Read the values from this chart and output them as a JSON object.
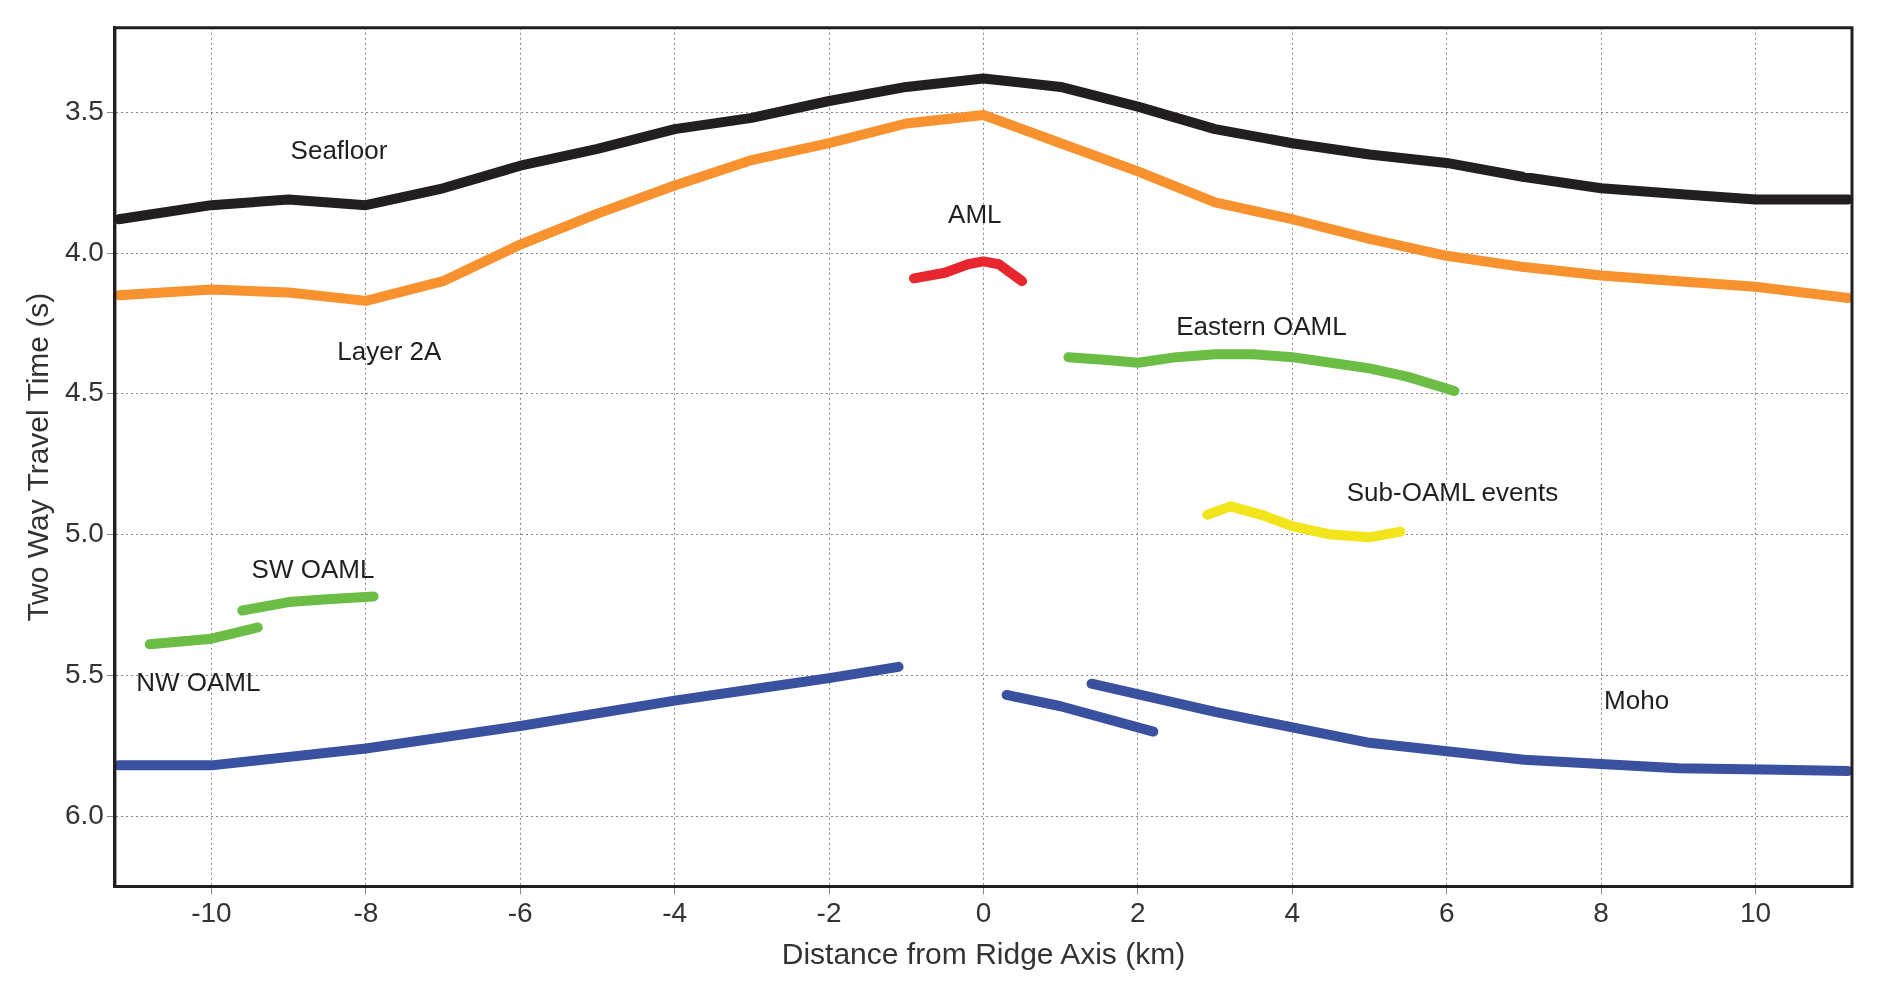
{
  "chart_data": {
    "type": "line",
    "xlabel": "Distance from Ridge Axis (km)",
    "ylabel": "Two Way Travel Time (s)",
    "xlim": [
      -11.25,
      11.25
    ],
    "ylim": [
      6.25,
      3.2
    ],
    "xticks": [
      -10,
      -8,
      -6,
      -4,
      -2,
      0,
      2,
      4,
      6,
      8,
      10
    ],
    "yticks": [
      3.5,
      {
        "value": 4,
        "label": "4.0"
      },
      4.5,
      {
        "value": 5,
        "label": "5.0"
      },
      5.5,
      {
        "value": 6,
        "label": "6.0"
      }
    ],
    "grid": true,
    "marker": "none",
    "series": [
      {
        "name": "Seafloor",
        "color": "#231f20",
        "x": [
          -11.2,
          -10,
          -9,
          -8,
          -7,
          -6,
          -5,
          -4,
          -3,
          -2,
          -1,
          0,
          1,
          2,
          3,
          4,
          5,
          6,
          7,
          8,
          9,
          10,
          11.2
        ],
        "values": [
          3.88,
          3.83,
          3.81,
          3.83,
          3.77,
          3.69,
          3.63,
          3.56,
          3.52,
          3.46,
          3.41,
          3.38,
          3.41,
          3.48,
          3.56,
          3.61,
          3.65,
          3.68,
          3.73,
          3.77,
          3.79,
          3.81,
          3.81
        ]
      },
      {
        "name": "Layer 2A",
        "color": "#f7922f",
        "x": [
          -11.2,
          -10,
          -9,
          -8,
          -7,
          -6,
          -5,
          -4,
          -3,
          -2,
          -1,
          0,
          1,
          2,
          3,
          4,
          5,
          6,
          7,
          8,
          9,
          10,
          11.2
        ],
        "values": [
          4.15,
          4.13,
          4.14,
          4.17,
          4.1,
          3.97,
          3.86,
          3.76,
          3.67,
          3.61,
          3.54,
          3.51,
          3.61,
          3.71,
          3.82,
          3.88,
          3.95,
          4.01,
          4.05,
          4.08,
          4.1,
          4.12,
          4.16
        ]
      },
      {
        "name": "AML",
        "color": "#e8262d",
        "x": [
          -0.9,
          -0.5,
          -0.2,
          0,
          0.2,
          0.5
        ],
        "values": [
          4.09,
          4.07,
          4.04,
          4.03,
          4.04,
          4.1
        ]
      },
      {
        "name": "Eastern OAML",
        "color": "#6cbd45",
        "x": [
          1.1,
          1.6,
          2,
          2.5,
          3,
          3.5,
          4,
          4.5,
          5,
          5.5,
          6.1
        ],
        "values": [
          4.37,
          4.38,
          4.39,
          4.37,
          4.36,
          4.36,
          4.37,
          4.39,
          4.41,
          4.44,
          4.49
        ]
      },
      {
        "name": "Sub-OAML events",
        "color": "#f2e51c",
        "x": [
          2.9,
          3.2,
          3.6,
          4,
          4.5,
          5,
          5.4
        ],
        "values": [
          4.93,
          4.9,
          4.93,
          4.97,
          5,
          5.01,
          4.99
        ]
      },
      {
        "name": "SW OAML",
        "color": "#6cbd45",
        "x": [
          -9.6,
          -9,
          -8.5,
          -7.9
        ],
        "values": [
          5.27,
          5.24,
          5.23,
          5.22
        ]
      },
      {
        "name": "NW OAML",
        "color": "#6cbd45",
        "x": [
          -10.8,
          -10,
          -9.4
        ],
        "values": [
          5.39,
          5.37,
          5.33
        ]
      },
      {
        "color": "#3a51a0",
        "x": [
          -11.2,
          -10,
          -8,
          -6,
          -4,
          -2,
          -1.1
        ],
        "values": [
          5.82,
          5.82,
          5.76,
          5.68,
          5.59,
          5.51,
          5.47
        ]
      },
      {
        "color": "#3a51a0",
        "x": [
          0.3,
          1,
          2.2
        ],
        "values": [
          5.57,
          5.61,
          5.7
        ]
      },
      {
        "name": "Moho",
        "color": "#3a51a0",
        "x": [
          1.4,
          3,
          5,
          7,
          9,
          11.2
        ],
        "values": [
          5.53,
          5.63,
          5.74,
          5.8,
          5.83,
          5.84
        ]
      }
    ]
  }
}
